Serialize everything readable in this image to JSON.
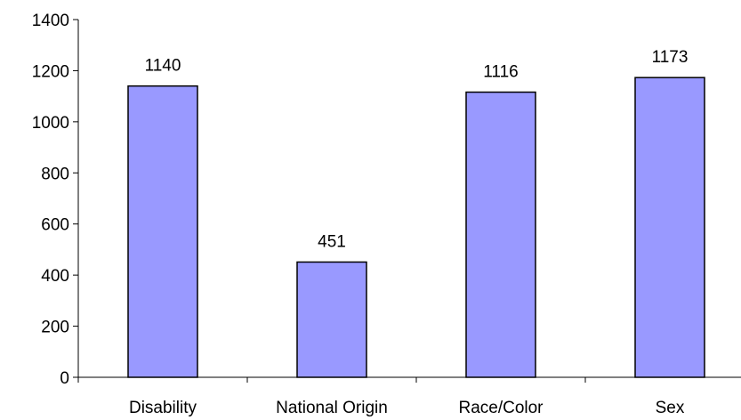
{
  "chart_data": {
    "type": "bar",
    "categories": [
      "Disability",
      "National Origin",
      "Race/Color",
      "Sex"
    ],
    "values": [
      1140,
      451,
      1116,
      1173
    ],
    "data_labels": [
      "1140",
      "451",
      "1116",
      "1173"
    ],
    "ylim": [
      0,
      1400
    ],
    "yticks": [
      0,
      200,
      400,
      600,
      800,
      1000,
      1200,
      1400
    ],
    "ytick_labels": [
      "0",
      "200",
      "400",
      "600",
      "800",
      "1000",
      "1200",
      "1400"
    ],
    "title": "",
    "xlabel": "",
    "ylabel": "",
    "grid": false,
    "legend": "none",
    "bar_color": "#9999ff",
    "bar_edge_color": "#000000"
  }
}
